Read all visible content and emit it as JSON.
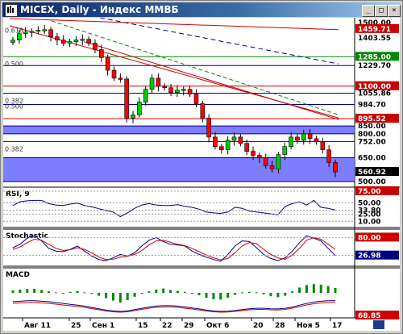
{
  "window": {
    "title": "MICEX, Daily - Индекс ММВБ",
    "minimize_label": "_",
    "maximize_label": "□",
    "close_label": "×"
  },
  "colors": {
    "candle_up": "#00cc00",
    "candle_down": "#ff0000",
    "blue_level": "#000080",
    "fill_band": "#6666ff",
    "red_level": "#cc0000",
    "green_level": "#008800",
    "rsi_line": "#000080",
    "stoch_k": "#000080",
    "stoch_d": "#cc0000",
    "macd_hist": "#008800"
  },
  "chart_data": {
    "type": "candlestick",
    "instrument": "MICEX",
    "timeframe": "Daily",
    "x_axis_labels": [
      "Авг 11",
      "25",
      "Сен 1",
      "15",
      "22",
      "29",
      "Окт 6",
      "20",
      "28",
      "Ноя 5",
      "17"
    ],
    "price_axis_labels": [
      "1500.00",
      "1459.71",
      "1403.55",
      "1285.00",
      "1229.70",
      "1100.00",
      "1055.86",
      "984.70",
      "895.52",
      "850.00",
      "800.00",
      "752.00",
      "650.00",
      "560.92",
      "500.00"
    ],
    "highlighted_prices": {
      "1459.71": "#cc0000",
      "1285.00": "#008800",
      "1100.00": "#cc0000",
      "895.52": "#cc0000",
      "560.92": "#000000"
    },
    "fib_labels": [
      "0.618",
      "0.500",
      "0.382",
      "0.500",
      "0.382"
    ],
    "horizontal_levels": [
      1285.0,
      1229.7,
      1100.0,
      1055.86,
      984.7,
      895.52,
      850.0,
      800.0,
      752.0,
      650.0,
      500.0
    ],
    "shaded_bands": [
      [
        800.0,
        850.0
      ],
      [
        500.0,
        650.0
      ]
    ],
    "closes": [
      1390,
      1430,
      1440,
      1445,
      1452,
      1455,
      1410,
      1390,
      1370,
      1380,
      1390,
      1395,
      1370,
      1330,
      1280,
      1200,
      1150,
      1145,
      900,
      920,
      1000,
      1080,
      1150,
      1100,
      1090,
      1060,
      1075,
      1080,
      1050,
      990,
      900,
      780,
      720,
      700,
      760,
      780,
      740,
      690,
      665,
      650,
      600,
      580,
      670,
      720,
      780,
      760,
      800,
      770,
      750,
      700,
      620,
      561
    ],
    "rsi": {
      "label": "RSI, 9",
      "axis_labels": [
        "75.00",
        "50.00",
        "33.80",
        "25.00",
        "10.00"
      ],
      "values": [
        44,
        52,
        54,
        55,
        55,
        48,
        45,
        44,
        47,
        49,
        44,
        41,
        37,
        33,
        30,
        20,
        28,
        38,
        45,
        48,
        45,
        44,
        44,
        46,
        42,
        40,
        36,
        30,
        28,
        27,
        30,
        40,
        38,
        32,
        30,
        28,
        26,
        24,
        42,
        48,
        52,
        45,
        55,
        40,
        38,
        34
      ]
    },
    "stochastic": {
      "label": "Stochastic",
      "axis_labels": [
        "80.00",
        "26.98"
      ],
      "k": [
        50,
        60,
        78,
        85,
        70,
        48,
        40,
        38,
        45,
        55,
        40,
        25,
        15,
        12,
        20,
        30,
        25,
        35,
        55,
        72,
        80,
        68,
        60,
        58,
        55,
        40,
        30,
        22,
        15,
        10,
        30,
        55,
        70,
        68,
        50,
        30,
        18,
        12,
        20,
        40,
        65,
        85,
        78,
        70,
        48,
        27
      ],
      "d": [
        45,
        52,
        65,
        75,
        72,
        60,
        48,
        42,
        44,
        50,
        45,
        35,
        22,
        15,
        16,
        22,
        25,
        30,
        42,
        58,
        70,
        72,
        66,
        60,
        56,
        48,
        38,
        28,
        20,
        14,
        18,
        35,
        55,
        65,
        62,
        45,
        30,
        20,
        16,
        28,
        48,
        72,
        80,
        75,
        60,
        45
      ]
    },
    "macd": {
      "label": "MACD",
      "axis_labels": [
        "68.85"
      ],
      "histogram": [
        0.25,
        0.35,
        0.4,
        0.42,
        0.3,
        0.15,
        0.05,
        -0.05,
        0.1,
        0.2,
        0.05,
        -0.1,
        -0.3,
        -0.55,
        -0.8,
        -1.0,
        -0.75,
        -0.4,
        -0.1,
        0.15,
        0.35,
        0.45,
        0.3,
        0.2,
        0.1,
        -0.05,
        -0.25,
        -0.5,
        -0.65,
        -0.7,
        -0.5,
        -0.2,
        0.05,
        0.1,
        0.05,
        -0.15,
        -0.35,
        -0.45,
        -0.3,
        0.15,
        0.55,
        0.8,
        0.9,
        0.85,
        0.7,
        0.5
      ],
      "signal": [
        0.2,
        0.25,
        0.3,
        0.3,
        0.25,
        0.2,
        0.1,
        0.0,
        -0.1,
        -0.2,
        -0.3,
        -0.45,
        -0.6,
        -0.75,
        -0.85,
        -0.9,
        -0.85,
        -0.7,
        -0.55,
        -0.4,
        -0.3,
        -0.25,
        -0.25,
        -0.3,
        -0.4,
        -0.5,
        -0.62,
        -0.75,
        -0.85,
        -0.9,
        -0.88,
        -0.8,
        -0.7,
        -0.6,
        -0.55,
        -0.55,
        -0.6,
        -0.62,
        -0.55,
        -0.4,
        -0.2,
        0.0,
        0.15,
        0.25,
        0.3,
        0.32
      ]
    }
  }
}
